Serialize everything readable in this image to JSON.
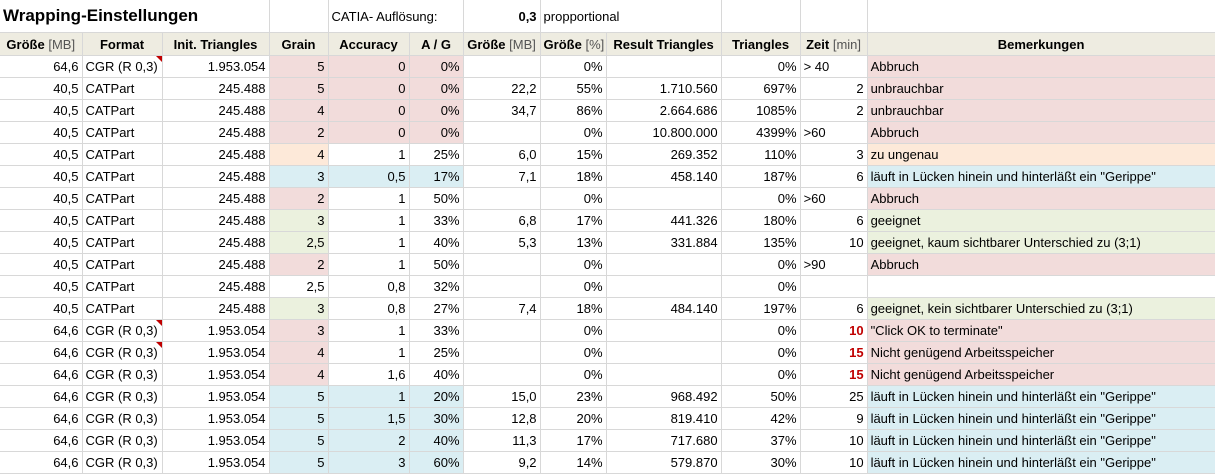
{
  "title": "Wrapping-Einstellungen",
  "catia_label": "CATIA- Auflösung:",
  "catia_value": "0,3",
  "catia_mode": "propportional",
  "headers": [
    {
      "main": "Größe",
      "unit": " [MB]"
    },
    {
      "main": "Format",
      "unit": ""
    },
    {
      "main": "Init. Triangles",
      "unit": ""
    },
    {
      "main": "Grain",
      "unit": ""
    },
    {
      "main": "Accuracy",
      "unit": ""
    },
    {
      "main": "A / G",
      "unit": ""
    },
    {
      "main": "Größe",
      "unit": " [MB]"
    },
    {
      "main": "Größe",
      "unit": " [%]"
    },
    {
      "main": "Result Triangles",
      "unit": ""
    },
    {
      "main": "Triangles",
      "unit": ""
    },
    {
      "main": "Zeit",
      "unit": " [min]"
    },
    {
      "main": "Bemerkungen",
      "unit": ""
    }
  ],
  "rows": [
    {
      "size": "64,6",
      "format": "CGR (R 0,3)",
      "init": "1.953.054",
      "grain": "5",
      "acc": "0",
      "ag": "0%",
      "rsize": "",
      "rpct": "0%",
      "rtri": "",
      "tri": "0%",
      "zeit": "> 40",
      "rem": "Abbruch",
      "color": "pink",
      "ga": true,
      "red": false,
      "tri_mark": true,
      "zeit_left": true
    },
    {
      "size": "40,5",
      "format": "CATPart",
      "init": "245.488",
      "grain": "5",
      "acc": "0",
      "ag": "0%",
      "rsize": "22,2",
      "rpct": "55%",
      "rtri": "1.710.560",
      "tri": "697%",
      "zeit": "2",
      "rem": "unbrauchbar",
      "color": "pink",
      "ga": true,
      "red": false,
      "tri_mark": false,
      "zeit_left": false
    },
    {
      "size": "40,5",
      "format": "CATPart",
      "init": "245.488",
      "grain": "4",
      "acc": "0",
      "ag": "0%",
      "rsize": "34,7",
      "rpct": "86%",
      "rtri": "2.664.686",
      "tri": "1085%",
      "zeit": "2",
      "rem": "unbrauchbar",
      "color": "pink",
      "ga": true,
      "red": false,
      "tri_mark": false,
      "zeit_left": false
    },
    {
      "size": "40,5",
      "format": "CATPart",
      "init": "245.488",
      "grain": "2",
      "acc": "0",
      "ag": "0%",
      "rsize": "",
      "rpct": "0%",
      "rtri": "10.800.000",
      "tri": "4399%",
      "zeit": ">60",
      "rem": "Abbruch",
      "color": "pink",
      "ga": true,
      "red": false,
      "tri_mark": false,
      "zeit_left": true
    },
    {
      "size": "40,5",
      "format": "CATPart",
      "init": "245.488",
      "grain": "4",
      "acc": "1",
      "ag": "25%",
      "rsize": "6,0",
      "rpct": "15%",
      "rtri": "269.352",
      "tri": "110%",
      "zeit": "3",
      "rem": "zu ungenau",
      "color": "peach",
      "ga": false,
      "red": false,
      "tri_mark": false,
      "zeit_left": false
    },
    {
      "size": "40,5",
      "format": "CATPart",
      "init": "245.488",
      "grain": "3",
      "acc": "0,5",
      "ag": "17%",
      "rsize": "7,1",
      "rpct": "18%",
      "rtri": "458.140",
      "tri": "187%",
      "zeit": "6",
      "rem": "läuft in Lücken hinein und hinterläßt ein \"Gerippe\"",
      "color": "blue",
      "ga": true,
      "red": false,
      "tri_mark": false,
      "zeit_left": false
    },
    {
      "size": "40,5",
      "format": "CATPart",
      "init": "245.488",
      "grain": "2",
      "acc": "1",
      "ag": "50%",
      "rsize": "",
      "rpct": "0%",
      "rtri": "",
      "tri": "0%",
      "zeit": ">60",
      "rem": "Abbruch",
      "color": "pink",
      "ga": false,
      "red": false,
      "tri_mark": false,
      "zeit_left": true
    },
    {
      "size": "40,5",
      "format": "CATPart",
      "init": "245.488",
      "grain": "3",
      "acc": "1",
      "ag": "33%",
      "rsize": "6,8",
      "rpct": "17%",
      "rtri": "441.326",
      "tri": "180%",
      "zeit": "6",
      "rem": "geeignet",
      "color": "green",
      "ga": false,
      "red": false,
      "tri_mark": false,
      "zeit_left": false
    },
    {
      "size": "40,5",
      "format": "CATPart",
      "init": "245.488",
      "grain": "2,5",
      "acc": "1",
      "ag": "40%",
      "rsize": "5,3",
      "rpct": "13%",
      "rtri": "331.884",
      "tri": "135%",
      "zeit": "10",
      "rem": "geeignet, kaum sichtbarer Unterschied zu (3;1)",
      "color": "green",
      "ga": false,
      "red": false,
      "tri_mark": false,
      "zeit_left": false
    },
    {
      "size": "40,5",
      "format": "CATPart",
      "init": "245.488",
      "grain": "2",
      "acc": "1",
      "ag": "50%",
      "rsize": "",
      "rpct": "0%",
      "rtri": "",
      "tri": "0%",
      "zeit": ">90",
      "rem": "Abbruch",
      "color": "pink",
      "ga": false,
      "red": false,
      "tri_mark": false,
      "zeit_left": true
    },
    {
      "size": "40,5",
      "format": "CATPart",
      "init": "245.488",
      "grain": "2,5",
      "acc": "0,8",
      "ag": "32%",
      "rsize": "",
      "rpct": "0%",
      "rtri": "",
      "tri": "0%",
      "zeit": "",
      "rem": "",
      "color": "none",
      "ga": false,
      "red": false,
      "tri_mark": false,
      "zeit_left": false
    },
    {
      "size": "40,5",
      "format": "CATPart",
      "init": "245.488",
      "grain": "3",
      "acc": "0,8",
      "ag": "27%",
      "rsize": "7,4",
      "rpct": "18%",
      "rtri": "484.140",
      "tri": "197%",
      "zeit": "6",
      "rem": "geeignet, kein sichtbarer Unterschied zu (3;1)",
      "color": "green",
      "ga": false,
      "red": false,
      "tri_mark": false,
      "zeit_left": false
    },
    {
      "size": "64,6",
      "format": "CGR (R 0,3)",
      "init": "1.953.054",
      "grain": "3",
      "acc": "1",
      "ag": "33%",
      "rsize": "",
      "rpct": "0%",
      "rtri": "",
      "tri": "0%",
      "zeit": "10",
      "rem": "\"Click OK to terminate\"",
      "color": "pink",
      "ga": false,
      "red": true,
      "tri_mark": true,
      "zeit_left": false
    },
    {
      "size": "64,6",
      "format": "CGR (R 0,3)",
      "init": "1.953.054",
      "grain": "4",
      "acc": "1",
      "ag": "25%",
      "rsize": "",
      "rpct": "0%",
      "rtri": "",
      "tri": "0%",
      "zeit": "15",
      "rem": "Nicht genügend Arbeitsspeicher",
      "color": "pink",
      "ga": false,
      "red": true,
      "tri_mark": true,
      "zeit_left": false
    },
    {
      "size": "64,6",
      "format": "CGR (R 0,3)",
      "init": "1.953.054",
      "grain": "4",
      "acc": "1,6",
      "ag": "40%",
      "rsize": "",
      "rpct": "0%",
      "rtri": "",
      "tri": "0%",
      "zeit": "15",
      "rem": "Nicht genügend Arbeitsspeicher",
      "color": "pink",
      "ga": false,
      "red": true,
      "tri_mark": false,
      "zeit_left": false
    },
    {
      "size": "64,6",
      "format": "CGR (R 0,3)",
      "init": "1.953.054",
      "grain": "5",
      "acc": "1",
      "ag": "20%",
      "rsize": "15,0",
      "rpct": "23%",
      "rtri": "968.492",
      "tri": "50%",
      "zeit": "25",
      "rem": "läuft in Lücken hinein und hinterläßt ein \"Gerippe\"",
      "color": "blue",
      "ga": true,
      "red": false,
      "tri_mark": false,
      "zeit_left": false
    },
    {
      "size": "64,6",
      "format": "CGR (R 0,3)",
      "init": "1.953.054",
      "grain": "5",
      "acc": "1,5",
      "ag": "30%",
      "rsize": "12,8",
      "rpct": "20%",
      "rtri": "819.410",
      "tri": "42%",
      "zeit": "9",
      "rem": "läuft in Lücken hinein und hinterläßt ein \"Gerippe\"",
      "color": "blue",
      "ga": true,
      "red": false,
      "tri_mark": false,
      "zeit_left": false
    },
    {
      "size": "64,6",
      "format": "CGR (R 0,3)",
      "init": "1.953.054",
      "grain": "5",
      "acc": "2",
      "ag": "40%",
      "rsize": "11,3",
      "rpct": "17%",
      "rtri": "717.680",
      "tri": "37%",
      "zeit": "10",
      "rem": "läuft in Lücken hinein und hinterläßt ein \"Gerippe\"",
      "color": "blue",
      "ga": true,
      "red": false,
      "tri_mark": false,
      "zeit_left": false
    },
    {
      "size": "64,6",
      "format": "CGR (R 0,3)",
      "init": "1.953.054",
      "grain": "5",
      "acc": "3",
      "ag": "60%",
      "rsize": "9,2",
      "rpct": "14%",
      "rtri": "579.870",
      "tri": "30%",
      "zeit": "10",
      "rem": "läuft in Lücken hinein und hinterläßt ein \"Gerippe\"",
      "color": "blue",
      "ga": true,
      "red": false,
      "tri_mark": false,
      "zeit_left": false
    }
  ]
}
